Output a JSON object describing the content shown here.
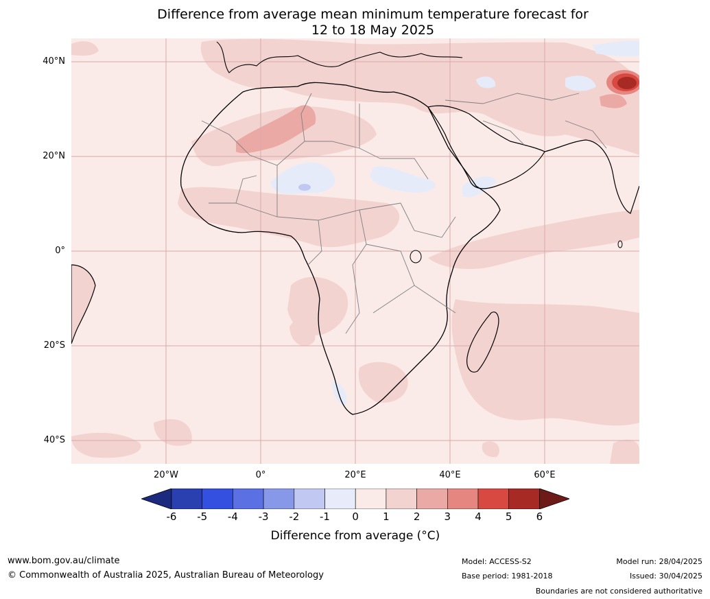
{
  "title": {
    "line1": "Difference from average mean minimum temperature forecast for",
    "line2": "12 to 18 May 2025"
  },
  "map": {
    "lat_labels": [
      "40°N",
      "20°N",
      "0°",
      "20°S",
      "40°S"
    ],
    "lon_labels": [
      "20°W",
      "0°",
      "20°E",
      "40°E",
      "60°E"
    ],
    "colors": {
      "ocean_background": "#fbebe8",
      "warm_1_2": "#f3d3d0",
      "warm_2_3": "#eba9a6",
      "warm_3_4": "#e58680",
      "warm_4_5": "#d84a41",
      "warm_5_6": "#a82a24",
      "cool_0_1": "#e6ebfa",
      "gridline": "#d9a9aa",
      "coastline": "#000000",
      "border": "#7f7f7f"
    }
  },
  "colorbar": {
    "ticks": [
      "-6",
      "-5",
      "-4",
      "-3",
      "-2",
      "-1",
      "0",
      "1",
      "2",
      "3",
      "4",
      "5",
      "6"
    ],
    "colors": [
      "#1b2a7e",
      "#2a3fb0",
      "#3350e0",
      "#5a70e3",
      "#8898e8",
      "#c1c8f2",
      "#e8ebfa",
      "#fbebe8",
      "#f3d3d0",
      "#eba9a6",
      "#e58680",
      "#d84a41",
      "#a82a24",
      "#6e1b18"
    ],
    "label": "Difference from average (°C)"
  },
  "footer": {
    "website": "www.bom.gov.au/climate",
    "copyright": "© Commonwealth of Australia 2025, Australian Bureau of Meteorology",
    "model": "Model: ACCESS-S2",
    "base_period": "Base period: 1981-2018",
    "model_run": "Model run: 28/04/2025",
    "issued": "Issued: 30/04/2025",
    "disclaimer": "Boundaries are not considered authoritative"
  }
}
